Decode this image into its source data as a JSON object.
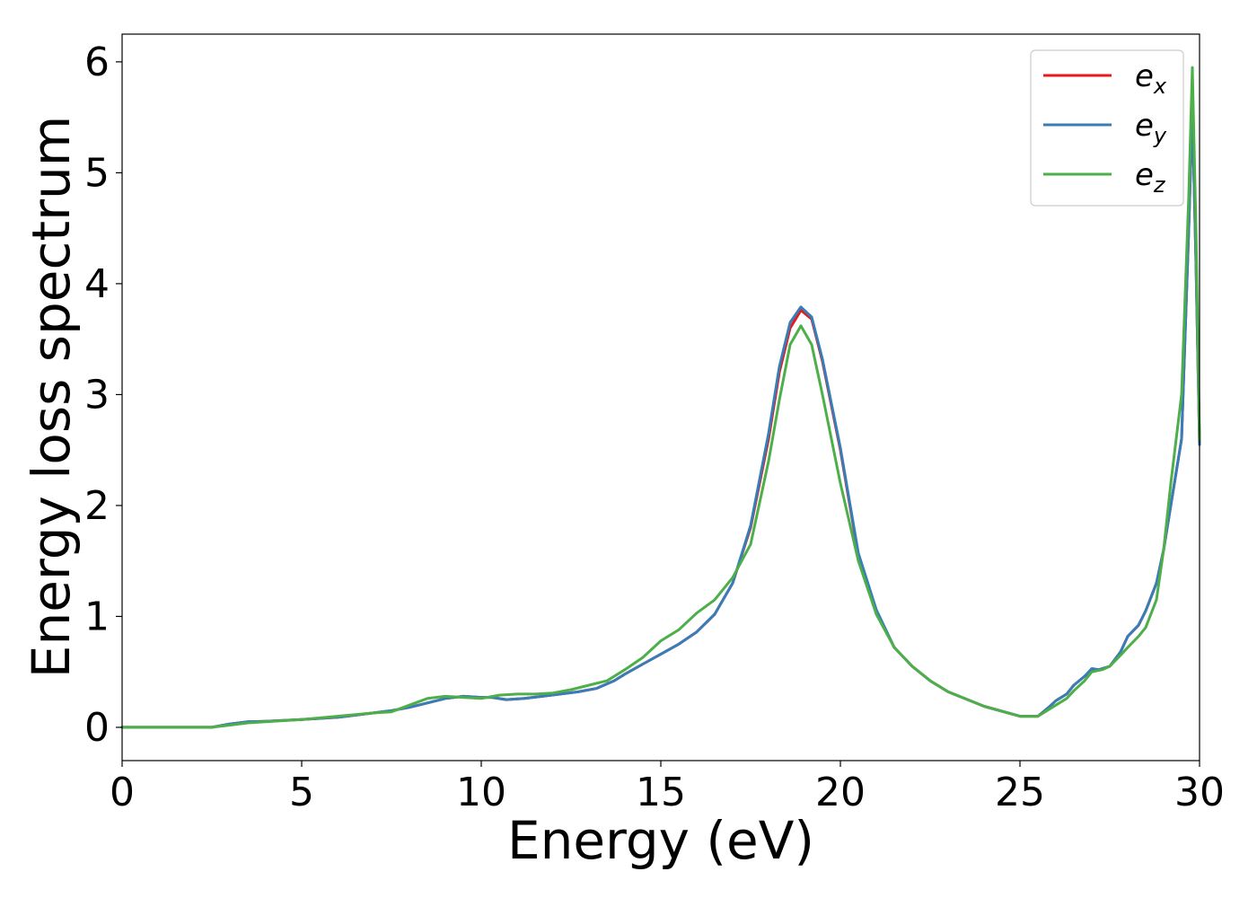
{
  "chart_data": {
    "type": "line",
    "title": "",
    "xlabel": "Energy (eV)",
    "ylabel": "Energy loss spectrum",
    "xlim": [
      0,
      30
    ],
    "ylim": [
      -0.3,
      6.25
    ],
    "x_ticks": [
      0,
      5,
      10,
      15,
      20,
      25,
      30
    ],
    "y_ticks": [
      0,
      1,
      2,
      3,
      4,
      5,
      6
    ],
    "grid": false,
    "legend_position": "top-right",
    "series": [
      {
        "name": "e",
        "subscript": "x",
        "color": "#e41a1c",
        "points": [
          [
            0,
            0
          ],
          [
            2.5,
            0
          ],
          [
            3,
            0.03
          ],
          [
            3.5,
            0.05
          ],
          [
            4,
            0.055
          ],
          [
            5,
            0.07
          ],
          [
            6,
            0.09
          ],
          [
            7,
            0.13
          ],
          [
            7.5,
            0.15
          ],
          [
            8,
            0.18
          ],
          [
            8.5,
            0.22
          ],
          [
            9,
            0.26
          ],
          [
            9.5,
            0.28
          ],
          [
            10,
            0.27
          ],
          [
            10.3,
            0.27
          ],
          [
            10.7,
            0.25
          ],
          [
            11.2,
            0.26
          ],
          [
            11.7,
            0.28
          ],
          [
            12.2,
            0.3
          ],
          [
            12.7,
            0.32
          ],
          [
            13.2,
            0.35
          ],
          [
            13.7,
            0.42
          ],
          [
            14,
            0.48
          ],
          [
            14.5,
            0.57
          ],
          [
            15,
            0.66
          ],
          [
            15.5,
            0.75
          ],
          [
            16,
            0.86
          ],
          [
            16.5,
            1.02
          ],
          [
            17,
            1.3
          ],
          [
            17.5,
            1.8
          ],
          [
            18,
            2.6
          ],
          [
            18.3,
            3.2
          ],
          [
            18.6,
            3.6
          ],
          [
            18.9,
            3.76
          ],
          [
            19.2,
            3.68
          ],
          [
            19.5,
            3.3
          ],
          [
            20,
            2.5
          ],
          [
            20.5,
            1.55
          ],
          [
            21,
            1.05
          ],
          [
            21.5,
            0.72
          ],
          [
            22,
            0.55
          ],
          [
            22.5,
            0.42
          ],
          [
            23,
            0.32
          ],
          [
            24,
            0.19
          ],
          [
            25,
            0.1
          ],
          [
            25.5,
            0.1
          ],
          [
            25.8,
            0.18
          ],
          [
            26,
            0.24
          ],
          [
            26.3,
            0.3
          ],
          [
            26.5,
            0.38
          ],
          [
            26.8,
            0.46
          ],
          [
            27,
            0.52
          ],
          [
            27.2,
            0.52
          ],
          [
            27.5,
            0.55
          ],
          [
            27.8,
            0.68
          ],
          [
            28,
            0.82
          ],
          [
            28.3,
            0.92
          ],
          [
            28.5,
            1.05
          ],
          [
            28.8,
            1.3
          ],
          [
            29,
            1.6
          ],
          [
            29.2,
            2.0
          ],
          [
            29.5,
            2.6
          ],
          [
            29.7,
            4.5
          ],
          [
            29.8,
            5.55
          ],
          [
            29.9,
            4.2
          ],
          [
            30,
            2.55
          ]
        ]
      },
      {
        "name": "e",
        "subscript": "y",
        "color": "#377eb8",
        "points": [
          [
            0,
            0
          ],
          [
            2.5,
            0
          ],
          [
            3,
            0.03
          ],
          [
            3.5,
            0.05
          ],
          [
            4,
            0.055
          ],
          [
            5,
            0.07
          ],
          [
            6,
            0.09
          ],
          [
            7,
            0.13
          ],
          [
            7.5,
            0.15
          ],
          [
            8,
            0.18
          ],
          [
            8.5,
            0.22
          ],
          [
            9,
            0.26
          ],
          [
            9.5,
            0.28
          ],
          [
            10,
            0.27
          ],
          [
            10.3,
            0.27
          ],
          [
            10.7,
            0.25
          ],
          [
            11.2,
            0.26
          ],
          [
            11.7,
            0.28
          ],
          [
            12.2,
            0.3
          ],
          [
            12.7,
            0.32
          ],
          [
            13.2,
            0.35
          ],
          [
            13.7,
            0.42
          ],
          [
            14,
            0.48
          ],
          [
            14.5,
            0.57
          ],
          [
            15,
            0.66
          ],
          [
            15.5,
            0.75
          ],
          [
            16,
            0.86
          ],
          [
            16.5,
            1.02
          ],
          [
            17,
            1.3
          ],
          [
            17.5,
            1.82
          ],
          [
            18,
            2.65
          ],
          [
            18.3,
            3.25
          ],
          [
            18.6,
            3.65
          ],
          [
            18.9,
            3.79
          ],
          [
            19.2,
            3.7
          ],
          [
            19.5,
            3.32
          ],
          [
            20,
            2.52
          ],
          [
            20.5,
            1.57
          ],
          [
            21,
            1.06
          ],
          [
            21.5,
            0.72
          ],
          [
            22,
            0.55
          ],
          [
            22.5,
            0.42
          ],
          [
            23,
            0.32
          ],
          [
            24,
            0.19
          ],
          [
            25,
            0.1
          ],
          [
            25.5,
            0.1
          ],
          [
            25.8,
            0.18
          ],
          [
            26,
            0.24
          ],
          [
            26.3,
            0.3
          ],
          [
            26.5,
            0.38
          ],
          [
            26.8,
            0.46
          ],
          [
            27,
            0.53
          ],
          [
            27.2,
            0.52
          ],
          [
            27.5,
            0.55
          ],
          [
            27.8,
            0.68
          ],
          [
            28,
            0.82
          ],
          [
            28.3,
            0.92
          ],
          [
            28.5,
            1.05
          ],
          [
            28.8,
            1.3
          ],
          [
            29,
            1.6
          ],
          [
            29.2,
            2.0
          ],
          [
            29.5,
            2.6
          ],
          [
            29.7,
            4.5
          ],
          [
            29.8,
            5.58
          ],
          [
            29.9,
            4.2
          ],
          [
            30,
            2.55
          ]
        ]
      },
      {
        "name": "e",
        "subscript": "z",
        "color": "#4daf4a",
        "points": [
          [
            0,
            0
          ],
          [
            2.5,
            0
          ],
          [
            3,
            0.02
          ],
          [
            3.5,
            0.04
          ],
          [
            4,
            0.05
          ],
          [
            5,
            0.07
          ],
          [
            6,
            0.1
          ],
          [
            7,
            0.13
          ],
          [
            7.5,
            0.14
          ],
          [
            8,
            0.2
          ],
          [
            8.5,
            0.26
          ],
          [
            9,
            0.28
          ],
          [
            9.5,
            0.27
          ],
          [
            10,
            0.26
          ],
          [
            10.5,
            0.29
          ],
          [
            11,
            0.3
          ],
          [
            11.5,
            0.3
          ],
          [
            12,
            0.31
          ],
          [
            12.5,
            0.34
          ],
          [
            13,
            0.38
          ],
          [
            13.5,
            0.42
          ],
          [
            14,
            0.52
          ],
          [
            14.5,
            0.63
          ],
          [
            15,
            0.78
          ],
          [
            15.5,
            0.88
          ],
          [
            16,
            1.03
          ],
          [
            16.5,
            1.15
          ],
          [
            17,
            1.35
          ],
          [
            17.5,
            1.65
          ],
          [
            18,
            2.4
          ],
          [
            18.3,
            2.95
          ],
          [
            18.6,
            3.45
          ],
          [
            18.9,
            3.62
          ],
          [
            19.2,
            3.45
          ],
          [
            19.5,
            3.0
          ],
          [
            20,
            2.2
          ],
          [
            20.5,
            1.5
          ],
          [
            21,
            1.02
          ],
          [
            21.5,
            0.72
          ],
          [
            22,
            0.55
          ],
          [
            22.5,
            0.42
          ],
          [
            23,
            0.32
          ],
          [
            24,
            0.19
          ],
          [
            25,
            0.1
          ],
          [
            25.5,
            0.1
          ],
          [
            25.8,
            0.16
          ],
          [
            26,
            0.2
          ],
          [
            26.3,
            0.26
          ],
          [
            26.5,
            0.33
          ],
          [
            26.8,
            0.42
          ],
          [
            27,
            0.5
          ],
          [
            27.3,
            0.52
          ],
          [
            27.5,
            0.55
          ],
          [
            27.8,
            0.65
          ],
          [
            28,
            0.72
          ],
          [
            28.3,
            0.82
          ],
          [
            28.5,
            0.9
          ],
          [
            28.8,
            1.15
          ],
          [
            29,
            1.6
          ],
          [
            29.2,
            2.2
          ],
          [
            29.5,
            3.0
          ],
          [
            29.7,
            4.8
          ],
          [
            29.8,
            5.95
          ],
          [
            29.9,
            4.5
          ],
          [
            30,
            2.6
          ]
        ]
      }
    ]
  }
}
